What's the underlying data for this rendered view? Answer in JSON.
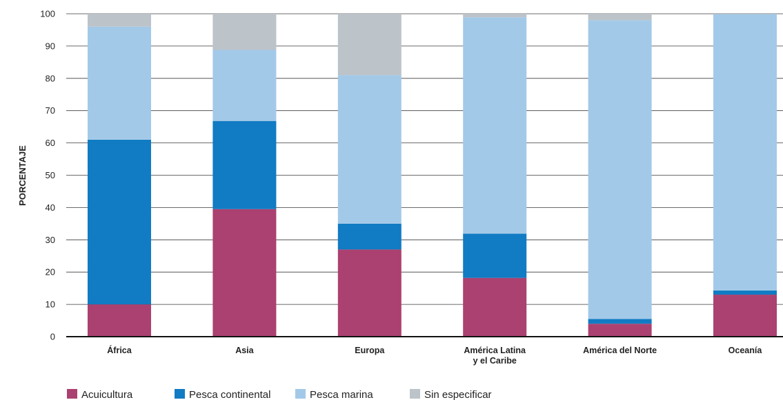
{
  "chart_data": {
    "type": "bar",
    "stacked": true,
    "categories": [
      "África",
      "Asia",
      "Europa",
      "América Latina\ny el Caribe",
      "América del Norte",
      "Oceanía"
    ],
    "series": [
      {
        "name": "Acuicultura",
        "color": "#ab4170",
        "values": [
          10,
          39.5,
          27,
          18.2,
          4,
          13
        ]
      },
      {
        "name": "Pesca continental",
        "color": "#117bc3",
        "values": [
          51,
          27.3,
          8,
          13.7,
          1.5,
          1.3
        ]
      },
      {
        "name": "Pesca marina",
        "color": "#a3c9e8",
        "values": [
          35,
          22,
          46,
          67,
          92.5,
          85.6
        ]
      },
      {
        "name": "Sin especificar",
        "color": "#bcc3c9",
        "values": [
          4,
          11.2,
          19,
          1.1,
          2,
          0.1
        ]
      }
    ],
    "ylabel": "PORCENTAJE",
    "ylim": [
      0,
      100
    ],
    "yticks": [
      0,
      10,
      20,
      30,
      40,
      50,
      60,
      70,
      80,
      90,
      100
    ],
    "grid": true,
    "legend_position": "bottom-left"
  }
}
